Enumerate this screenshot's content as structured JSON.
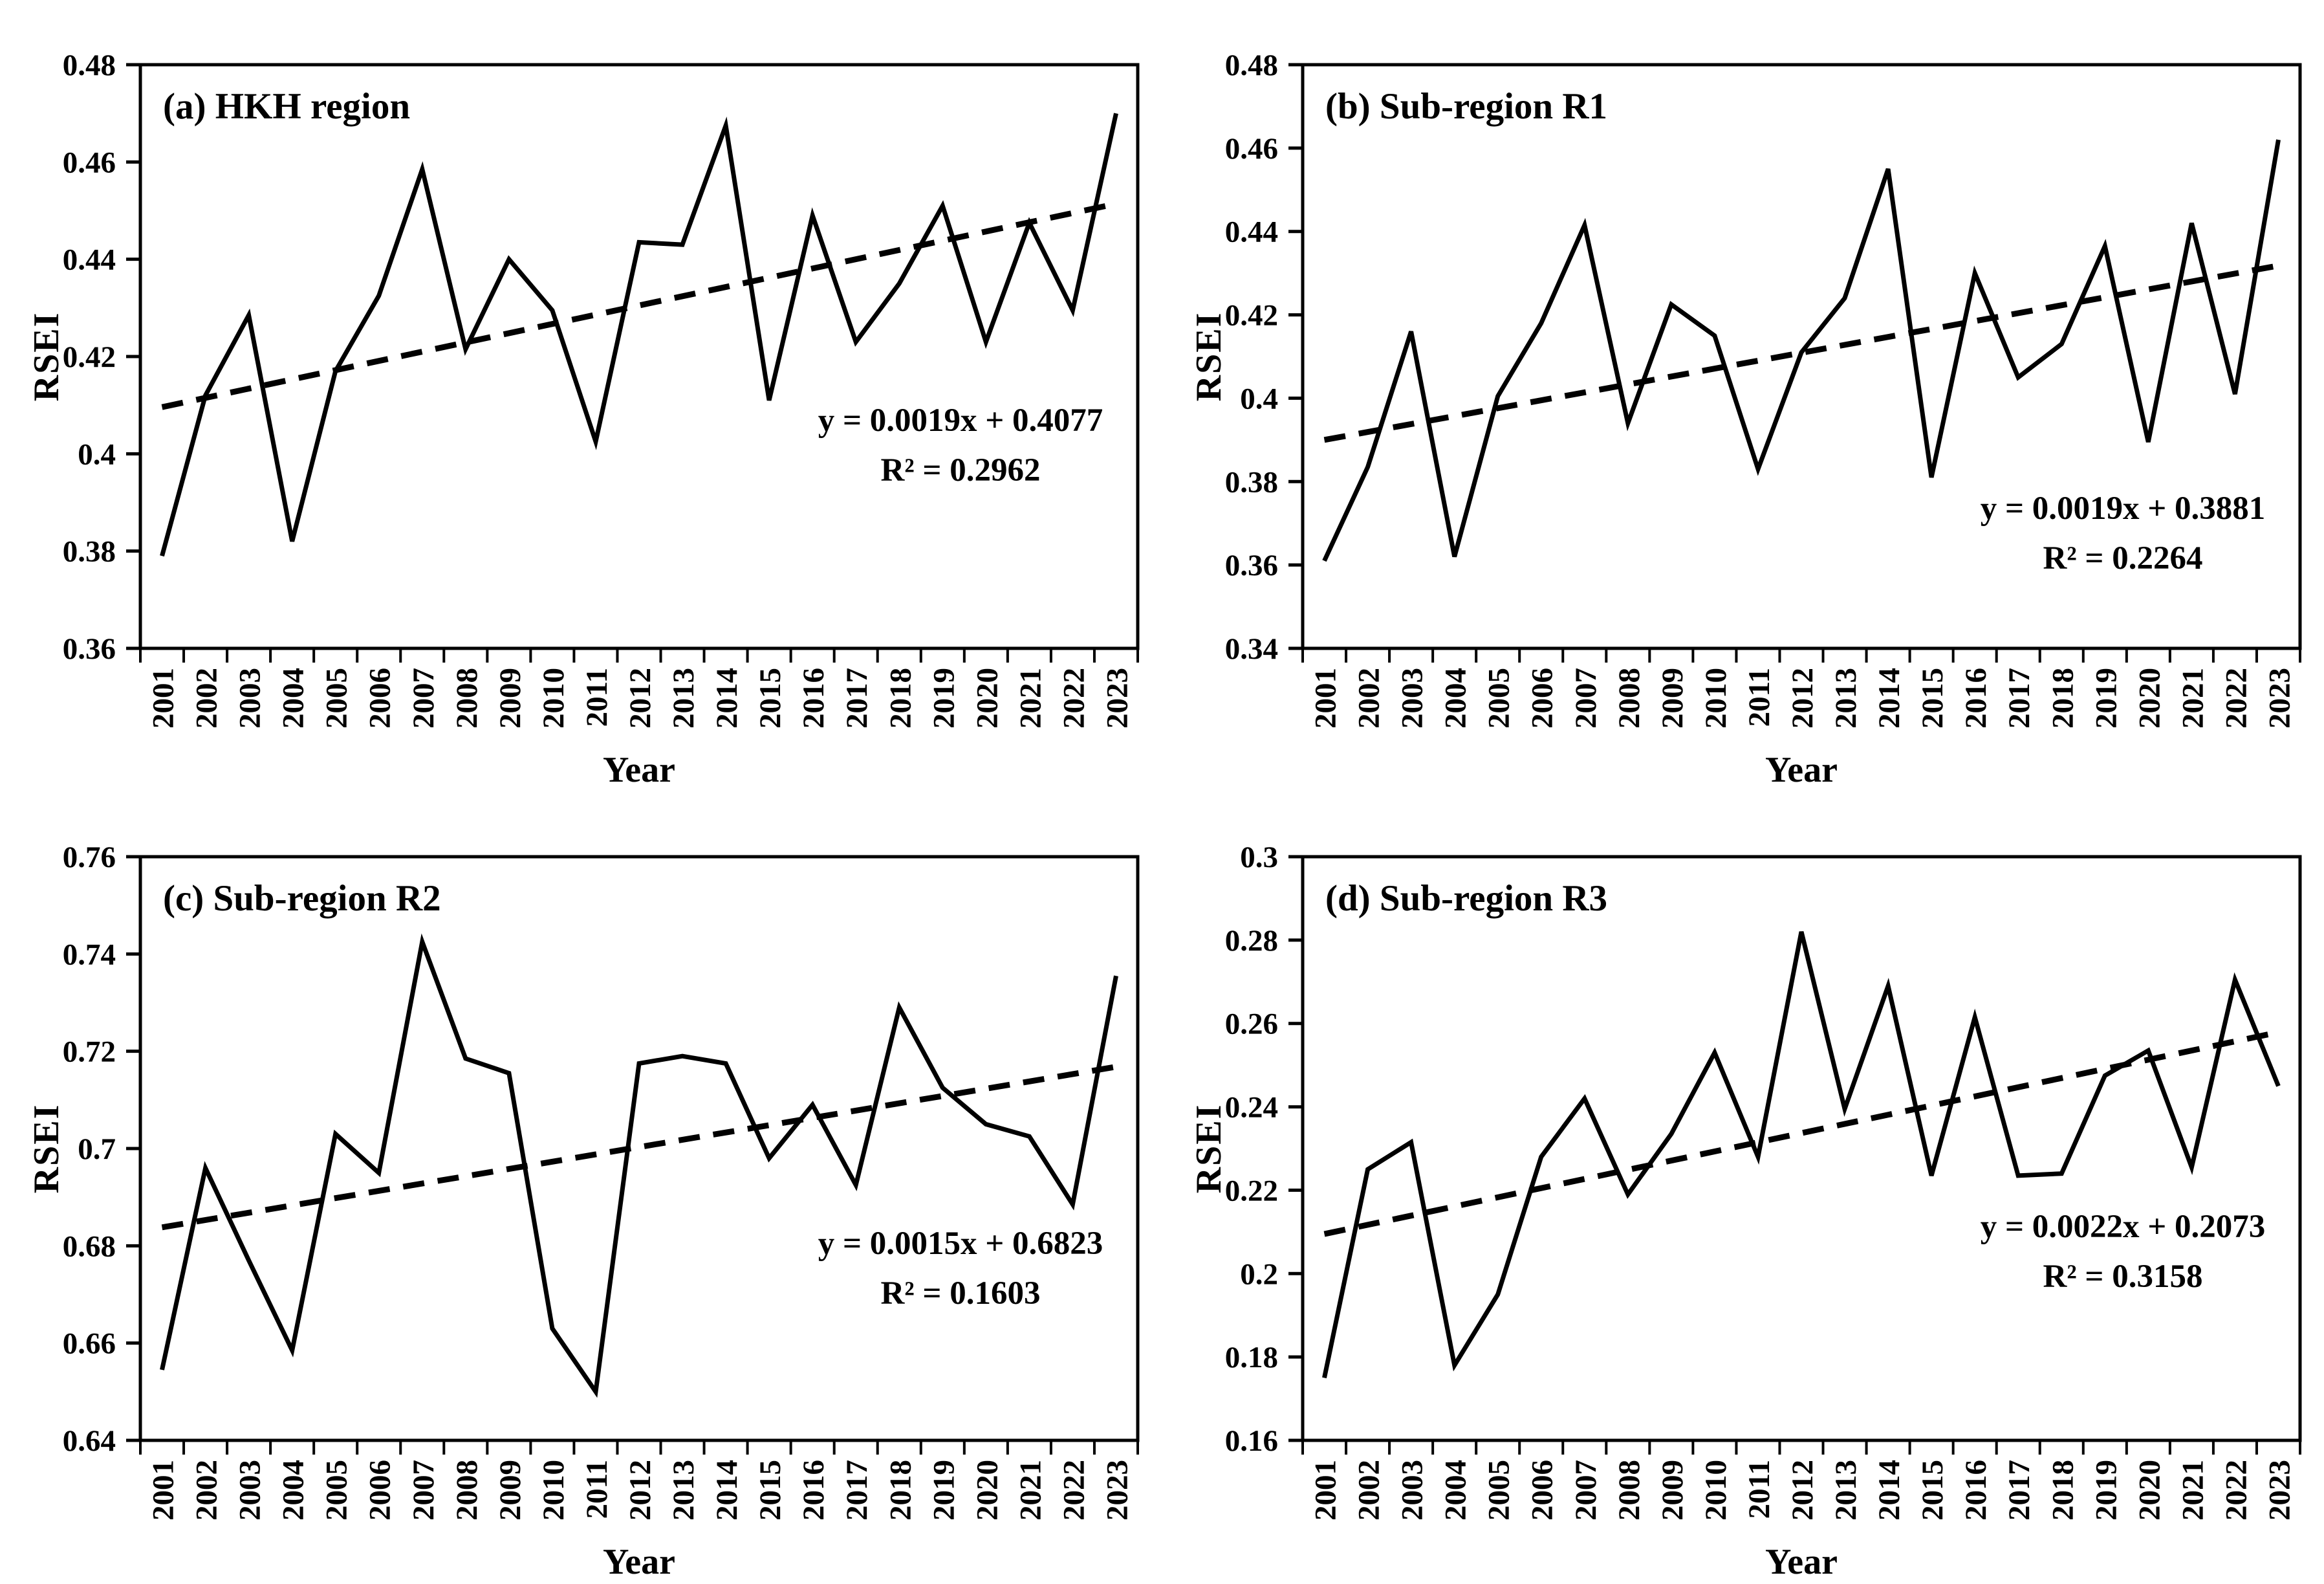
{
  "figure": {
    "background_color": "#ffffff",
    "line_color": "#000000",
    "trend_line_style": "dashed",
    "x_axis_title": "Year",
    "y_axis_title": "RSEI"
  },
  "chart_data": [
    {
      "type": "line",
      "title": "(a) HKH region",
      "xlabel": "Year",
      "ylabel": "RSEI",
      "x": [
        2001,
        2002,
        2003,
        2004,
        2005,
        2006,
        2007,
        2008,
        2009,
        2010,
        2011,
        2012,
        2013,
        2014,
        2015,
        2016,
        2017,
        2018,
        2019,
        2020,
        2021,
        2022,
        2023
      ],
      "values": [
        0.379,
        0.412,
        0.4285,
        0.382,
        0.417,
        0.4325,
        0.4585,
        0.4215,
        0.44,
        0.4295,
        0.4025,
        0.4435,
        0.443,
        0.4675,
        0.411,
        0.449,
        0.423,
        0.435,
        0.451,
        0.423,
        0.4475,
        0.4295,
        0.47
      ],
      "trend": {
        "slope": 0.0019,
        "intercept": 0.4077
      },
      "equation": {
        "line1": "y = 0.0019x + 0.4077",
        "line2": "R² = 0.2962"
      },
      "ylim": [
        0.36,
        0.48
      ],
      "ytick_labels": [
        "0.36",
        "0.38",
        "0.4",
        "0.42",
        "0.44",
        "0.46",
        "0.48"
      ],
      "grid": false,
      "legend": "none"
    },
    {
      "type": "line",
      "title": "(b) Sub-region R1",
      "xlabel": "Year",
      "ylabel": "RSEI",
      "x": [
        2001,
        2002,
        2003,
        2004,
        2005,
        2006,
        2007,
        2008,
        2009,
        2010,
        2011,
        2012,
        2013,
        2014,
        2015,
        2016,
        2017,
        2018,
        2019,
        2020,
        2021,
        2022,
        2023
      ],
      "values": [
        0.361,
        0.3835,
        0.416,
        0.362,
        0.4005,
        0.418,
        0.4415,
        0.394,
        0.4225,
        0.415,
        0.383,
        0.411,
        0.424,
        0.455,
        0.381,
        0.43,
        0.405,
        0.413,
        0.4365,
        0.3895,
        0.442,
        0.401,
        0.462
      ],
      "trend": {
        "slope": 0.0019,
        "intercept": 0.3881
      },
      "equation": {
        "line1": "y = 0.0019x + 0.3881",
        "line2": "R² = 0.2264"
      },
      "ylim": [
        0.34,
        0.48
      ],
      "ytick_labels": [
        "0.34",
        "0.36",
        "0.38",
        "0.4",
        "0.42",
        "0.44",
        "0.46",
        "0.48"
      ],
      "grid": false,
      "legend": "none"
    },
    {
      "type": "line",
      "title": "(c) Sub-region R2",
      "xlabel": "Year",
      "ylabel": "RSEI",
      "x": [
        2001,
        2002,
        2003,
        2004,
        2005,
        2006,
        2007,
        2008,
        2009,
        2010,
        2011,
        2012,
        2013,
        2014,
        2015,
        2016,
        2017,
        2018,
        2019,
        2020,
        2021,
        2022,
        2023
      ],
      "values": [
        0.6545,
        0.696,
        0.677,
        0.6585,
        0.703,
        0.695,
        0.7425,
        0.7185,
        0.7155,
        0.663,
        0.65,
        0.7175,
        0.719,
        0.7175,
        0.698,
        0.709,
        0.6925,
        0.729,
        0.7125,
        0.705,
        0.7025,
        0.6885,
        0.7355
      ],
      "trend": {
        "slope": 0.0015,
        "intercept": 0.6823
      },
      "equation": {
        "line1": "y = 0.0015x + 0.6823",
        "line2": "R² = 0.1603"
      },
      "ylim": [
        0.64,
        0.76
      ],
      "ytick_labels": [
        "0.64",
        "0.66",
        "0.68",
        "0.7",
        "0.72",
        "0.74",
        "0.76"
      ],
      "grid": false,
      "legend": "none"
    },
    {
      "type": "line",
      "title": "(d) Sub-region R3",
      "xlabel": "Year",
      "ylabel": "RSEI",
      "x": [
        2001,
        2002,
        2003,
        2004,
        2005,
        2006,
        2007,
        2008,
        2009,
        2010,
        2011,
        2012,
        2013,
        2014,
        2015,
        2016,
        2017,
        2018,
        2019,
        2020,
        2021,
        2022,
        2023
      ],
      "values": [
        0.175,
        0.225,
        0.2315,
        0.178,
        0.195,
        0.228,
        0.242,
        0.219,
        0.2335,
        0.253,
        0.228,
        0.282,
        0.2395,
        0.269,
        0.2235,
        0.2615,
        0.2235,
        0.224,
        0.2475,
        0.2535,
        0.2255,
        0.2705,
        0.245
      ],
      "trend": {
        "slope": 0.0022,
        "intercept": 0.2073
      },
      "equation": {
        "line1": "y = 0.0022x + 0.2073",
        "line2": "R² = 0.3158"
      },
      "ylim": [
        0.16,
        0.3
      ],
      "ytick_labels": [
        "0.16",
        "0.18",
        "0.2",
        "0.22",
        "0.24",
        "0.26",
        "0.28",
        "0.3"
      ],
      "grid": false,
      "legend": "none"
    }
  ]
}
